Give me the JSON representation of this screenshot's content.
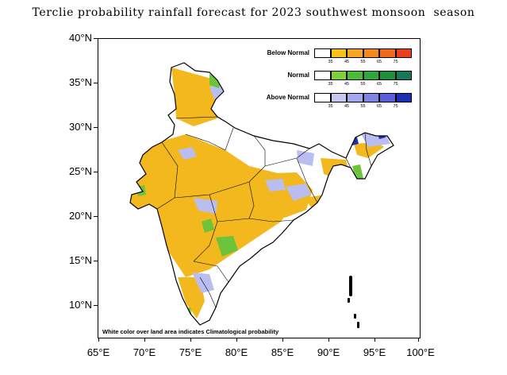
{
  "title": "Terclie probability rainfall forecast for 2023 southwest monsoon  season",
  "axes": {
    "y_labels": [
      "40°N",
      "35°N",
      "30°N",
      "25°N",
      "20°N",
      "15°N",
      "10°N"
    ],
    "x_labels": [
      "65°E",
      "70°E",
      "75°E",
      "80°E",
      "85°E",
      "90°E",
      "95°E",
      "100°E"
    ]
  },
  "legend": {
    "ticks": [
      "35",
      "45",
      "55",
      "65",
      "75"
    ],
    "rows": [
      {
        "label": "Below Normal",
        "colors": [
          "#ffffff",
          "#f6c21a",
          "#f5a623",
          "#f28b1b",
          "#ee6a1a",
          "#e8401c"
        ]
      },
      {
        "label": "Normal",
        "colors": [
          "#ffffff",
          "#7fcf3a",
          "#4cbb3a",
          "#2fa73c",
          "#1f8f3e",
          "#167a5a"
        ]
      },
      {
        "label": "Above Normal",
        "colors": [
          "#ffffff",
          "#c6c8f0",
          "#a4a8ec",
          "#7f85e4",
          "#5a5fdb",
          "#1c2fb3"
        ]
      }
    ]
  },
  "footnote": "White color over land area indicates Climatological probability",
  "palette": {
    "below": "#f3b81e",
    "normal": "#6cc43b",
    "above": "#b9bdf0",
    "outline": "#000000"
  }
}
